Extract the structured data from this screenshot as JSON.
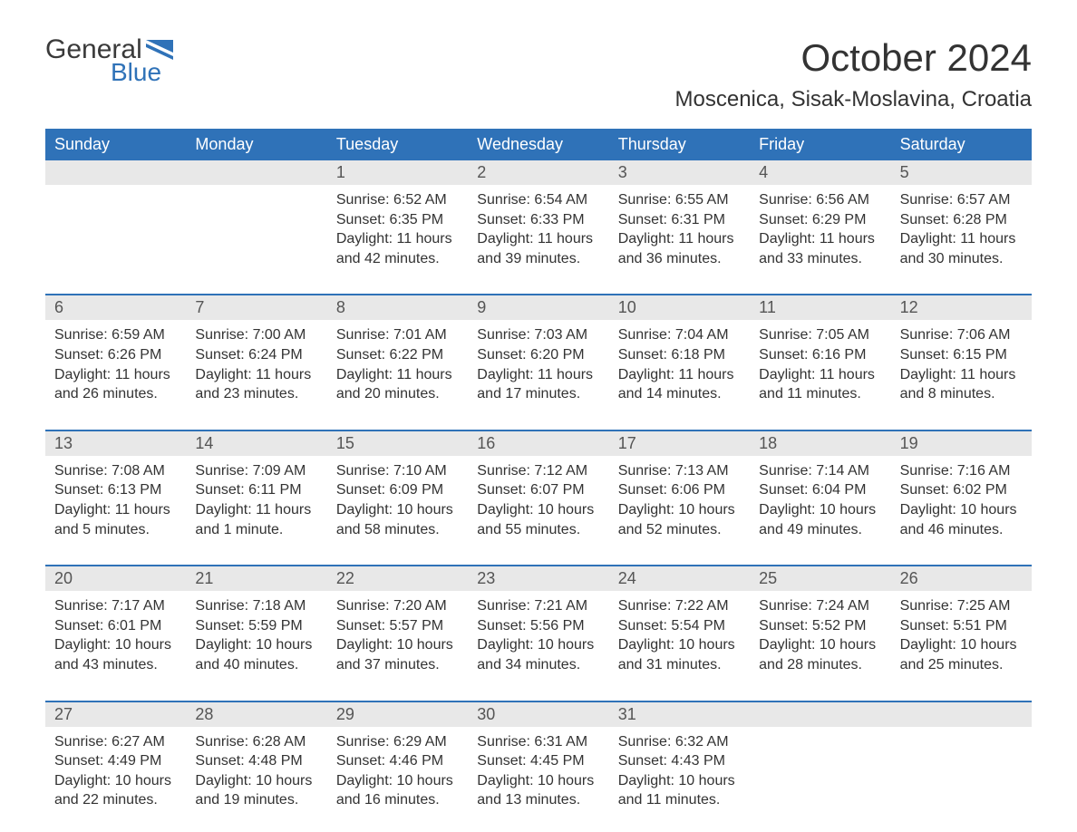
{
  "logo": {
    "word1": "General",
    "word2": "Blue"
  },
  "title": "October 2024",
  "location": "Moscenica, Sisak-Moslavina, Croatia",
  "colors": {
    "header_bg": "#2f72b8",
    "header_text": "#ffffff",
    "daynum_bg": "#e8e8e8",
    "body_text": "#333333",
    "logo_blue": "#2f72b8",
    "logo_gray": "#3a3a3a",
    "border_top": "#2f72b8"
  },
  "typography": {
    "title_fontsize": 42,
    "location_fontsize": 24,
    "header_fontsize": 18,
    "daynum_fontsize": 18,
    "body_fontsize": 16
  },
  "weekday_labels": [
    "Sunday",
    "Monday",
    "Tuesday",
    "Wednesday",
    "Thursday",
    "Friday",
    "Saturday"
  ],
  "weeks": [
    {
      "days": [
        null,
        null,
        {
          "n": "1",
          "sr": "Sunrise: 6:52 AM",
          "ss": "Sunset: 6:35 PM",
          "d1": "Daylight: 11 hours",
          "d2": "and 42 minutes."
        },
        {
          "n": "2",
          "sr": "Sunrise: 6:54 AM",
          "ss": "Sunset: 6:33 PM",
          "d1": "Daylight: 11 hours",
          "d2": "and 39 minutes."
        },
        {
          "n": "3",
          "sr": "Sunrise: 6:55 AM",
          "ss": "Sunset: 6:31 PM",
          "d1": "Daylight: 11 hours",
          "d2": "and 36 minutes."
        },
        {
          "n": "4",
          "sr": "Sunrise: 6:56 AM",
          "ss": "Sunset: 6:29 PM",
          "d1": "Daylight: 11 hours",
          "d2": "and 33 minutes."
        },
        {
          "n": "5",
          "sr": "Sunrise: 6:57 AM",
          "ss": "Sunset: 6:28 PM",
          "d1": "Daylight: 11 hours",
          "d2": "and 30 minutes."
        }
      ]
    },
    {
      "days": [
        {
          "n": "6",
          "sr": "Sunrise: 6:59 AM",
          "ss": "Sunset: 6:26 PM",
          "d1": "Daylight: 11 hours",
          "d2": "and 26 minutes."
        },
        {
          "n": "7",
          "sr": "Sunrise: 7:00 AM",
          "ss": "Sunset: 6:24 PM",
          "d1": "Daylight: 11 hours",
          "d2": "and 23 minutes."
        },
        {
          "n": "8",
          "sr": "Sunrise: 7:01 AM",
          "ss": "Sunset: 6:22 PM",
          "d1": "Daylight: 11 hours",
          "d2": "and 20 minutes."
        },
        {
          "n": "9",
          "sr": "Sunrise: 7:03 AM",
          "ss": "Sunset: 6:20 PM",
          "d1": "Daylight: 11 hours",
          "d2": "and 17 minutes."
        },
        {
          "n": "10",
          "sr": "Sunrise: 7:04 AM",
          "ss": "Sunset: 6:18 PM",
          "d1": "Daylight: 11 hours",
          "d2": "and 14 minutes."
        },
        {
          "n": "11",
          "sr": "Sunrise: 7:05 AM",
          "ss": "Sunset: 6:16 PM",
          "d1": "Daylight: 11 hours",
          "d2": "and 11 minutes."
        },
        {
          "n": "12",
          "sr": "Sunrise: 7:06 AM",
          "ss": "Sunset: 6:15 PM",
          "d1": "Daylight: 11 hours",
          "d2": "and 8 minutes."
        }
      ]
    },
    {
      "days": [
        {
          "n": "13",
          "sr": "Sunrise: 7:08 AM",
          "ss": "Sunset: 6:13 PM",
          "d1": "Daylight: 11 hours",
          "d2": "and 5 minutes."
        },
        {
          "n": "14",
          "sr": "Sunrise: 7:09 AM",
          "ss": "Sunset: 6:11 PM",
          "d1": "Daylight: 11 hours",
          "d2": "and 1 minute."
        },
        {
          "n": "15",
          "sr": "Sunrise: 7:10 AM",
          "ss": "Sunset: 6:09 PM",
          "d1": "Daylight: 10 hours",
          "d2": "and 58 minutes."
        },
        {
          "n": "16",
          "sr": "Sunrise: 7:12 AM",
          "ss": "Sunset: 6:07 PM",
          "d1": "Daylight: 10 hours",
          "d2": "and 55 minutes."
        },
        {
          "n": "17",
          "sr": "Sunrise: 7:13 AM",
          "ss": "Sunset: 6:06 PM",
          "d1": "Daylight: 10 hours",
          "d2": "and 52 minutes."
        },
        {
          "n": "18",
          "sr": "Sunrise: 7:14 AM",
          "ss": "Sunset: 6:04 PM",
          "d1": "Daylight: 10 hours",
          "d2": "and 49 minutes."
        },
        {
          "n": "19",
          "sr": "Sunrise: 7:16 AM",
          "ss": "Sunset: 6:02 PM",
          "d1": "Daylight: 10 hours",
          "d2": "and 46 minutes."
        }
      ]
    },
    {
      "days": [
        {
          "n": "20",
          "sr": "Sunrise: 7:17 AM",
          "ss": "Sunset: 6:01 PM",
          "d1": "Daylight: 10 hours",
          "d2": "and 43 minutes."
        },
        {
          "n": "21",
          "sr": "Sunrise: 7:18 AM",
          "ss": "Sunset: 5:59 PM",
          "d1": "Daylight: 10 hours",
          "d2": "and 40 minutes."
        },
        {
          "n": "22",
          "sr": "Sunrise: 7:20 AM",
          "ss": "Sunset: 5:57 PM",
          "d1": "Daylight: 10 hours",
          "d2": "and 37 minutes."
        },
        {
          "n": "23",
          "sr": "Sunrise: 7:21 AM",
          "ss": "Sunset: 5:56 PM",
          "d1": "Daylight: 10 hours",
          "d2": "and 34 minutes."
        },
        {
          "n": "24",
          "sr": "Sunrise: 7:22 AM",
          "ss": "Sunset: 5:54 PM",
          "d1": "Daylight: 10 hours",
          "d2": "and 31 minutes."
        },
        {
          "n": "25",
          "sr": "Sunrise: 7:24 AM",
          "ss": "Sunset: 5:52 PM",
          "d1": "Daylight: 10 hours",
          "d2": "and 28 minutes."
        },
        {
          "n": "26",
          "sr": "Sunrise: 7:25 AM",
          "ss": "Sunset: 5:51 PM",
          "d1": "Daylight: 10 hours",
          "d2": "and 25 minutes."
        }
      ]
    },
    {
      "days": [
        {
          "n": "27",
          "sr": "Sunrise: 6:27 AM",
          "ss": "Sunset: 4:49 PM",
          "d1": "Daylight: 10 hours",
          "d2": "and 22 minutes."
        },
        {
          "n": "28",
          "sr": "Sunrise: 6:28 AM",
          "ss": "Sunset: 4:48 PM",
          "d1": "Daylight: 10 hours",
          "d2": "and 19 minutes."
        },
        {
          "n": "29",
          "sr": "Sunrise: 6:29 AM",
          "ss": "Sunset: 4:46 PM",
          "d1": "Daylight: 10 hours",
          "d2": "and 16 minutes."
        },
        {
          "n": "30",
          "sr": "Sunrise: 6:31 AM",
          "ss": "Sunset: 4:45 PM",
          "d1": "Daylight: 10 hours",
          "d2": "and 13 minutes."
        },
        {
          "n": "31",
          "sr": "Sunrise: 6:32 AM",
          "ss": "Sunset: 4:43 PM",
          "d1": "Daylight: 10 hours",
          "d2": "and 11 minutes."
        },
        null,
        null
      ]
    }
  ]
}
